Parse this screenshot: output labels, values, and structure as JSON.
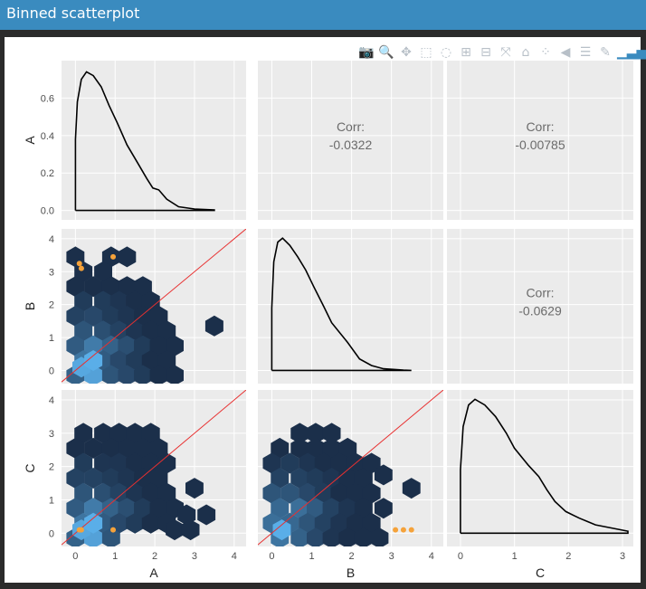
{
  "window": {
    "title": "Binned scatterplot"
  },
  "toolbar": [
    {
      "name": "camera-icon",
      "glyph": "📷"
    },
    {
      "name": "zoom-icon",
      "glyph": "🔍"
    },
    {
      "name": "pan-icon",
      "glyph": "✥"
    },
    {
      "name": "box-select-icon",
      "glyph": "⬚"
    },
    {
      "name": "lasso-icon",
      "glyph": "◌"
    },
    {
      "name": "zoom-in-icon",
      "glyph": "⊞"
    },
    {
      "name": "zoom-out-icon",
      "glyph": "⊟"
    },
    {
      "name": "autoscale-icon",
      "glyph": "⤧"
    },
    {
      "name": "home-icon",
      "glyph": "⌂"
    },
    {
      "name": "spike-lines-icon",
      "glyph": "⁘"
    },
    {
      "name": "hover-closest-icon",
      "glyph": "◀"
    },
    {
      "name": "hover-compare-icon",
      "glyph": "☰"
    },
    {
      "name": "edit-icon",
      "glyph": "✎"
    },
    {
      "name": "plotly-logo-icon",
      "glyph": "▁▃▅"
    }
  ],
  "colors": {
    "hex_dark": "#1b2f4a",
    "hex_light": "#5aaee8",
    "point": "#f5a23a",
    "ref_line": "#e83030",
    "panel_bg": "#ebebeb"
  },
  "chart_data": {
    "type": "scatter-matrix",
    "variables": [
      "A",
      "B",
      "C"
    ],
    "ticks": {
      "A_y": [
        "0.0",
        "0.2",
        "0.4",
        "0.6"
      ],
      "B_y": [
        "0",
        "1",
        "2",
        "3",
        "4"
      ],
      "C_y": [
        "0",
        "1",
        "2",
        "3",
        "4"
      ],
      "A_x": [
        "0",
        "1",
        "2",
        "3",
        "4"
      ],
      "B_x": [
        "0",
        "1",
        "2",
        "3",
        "4"
      ],
      "C_x": [
        "0",
        "1",
        "2",
        "3"
      ]
    },
    "correlations": [
      {
        "pair": "A-B",
        "label": "Corr:",
        "value": "-0.0322"
      },
      {
        "pair": "A-C",
        "label": "Corr:",
        "value": "-0.00785"
      },
      {
        "pair": "B-C",
        "label": "Corr:",
        "value": "-0.0629"
      }
    ],
    "densities": {
      "A": [
        [
          0,
          0
        ],
        [
          0,
          0.38
        ],
        [
          0.05,
          0.58
        ],
        [
          0.15,
          0.7
        ],
        [
          0.28,
          0.74
        ],
        [
          0.45,
          0.72
        ],
        [
          0.65,
          0.66
        ],
        [
          0.85,
          0.56
        ],
        [
          1.05,
          0.47
        ],
        [
          1.3,
          0.35
        ],
        [
          1.55,
          0.26
        ],
        [
          1.8,
          0.17
        ],
        [
          1.95,
          0.12
        ],
        [
          2.1,
          0.11
        ],
        [
          2.3,
          0.06
        ],
        [
          2.6,
          0.02
        ],
        [
          3.0,
          0.008
        ],
        [
          3.5,
          0.003
        ],
        [
          3.5,
          0
        ],
        [
          0,
          0
        ]
      ],
      "B": [
        [
          0,
          0
        ],
        [
          0,
          1.9
        ],
        [
          0.05,
          3.3
        ],
        [
          0.15,
          3.9
        ],
        [
          0.27,
          4.02
        ],
        [
          0.45,
          3.8
        ],
        [
          0.65,
          3.45
        ],
        [
          0.85,
          3.05
        ],
        [
          1.05,
          2.55
        ],
        [
          1.3,
          1.95
        ],
        [
          1.5,
          1.45
        ],
        [
          1.7,
          1.15
        ],
        [
          1.9,
          0.85
        ],
        [
          2.2,
          0.35
        ],
        [
          2.5,
          0.15
        ],
        [
          2.8,
          0.05
        ],
        [
          3.3,
          0.01
        ],
        [
          3.5,
          0
        ],
        [
          0,
          0
        ]
      ],
      "C": [
        [
          0,
          0
        ],
        [
          0,
          1.9
        ],
        [
          0.05,
          3.2
        ],
        [
          0.15,
          3.85
        ],
        [
          0.27,
          4.02
        ],
        [
          0.45,
          3.85
        ],
        [
          0.65,
          3.5
        ],
        [
          0.85,
          3.0
        ],
        [
          1.0,
          2.55
        ],
        [
          1.25,
          2.05
        ],
        [
          1.45,
          1.7
        ],
        [
          1.6,
          1.3
        ],
        [
          1.75,
          0.95
        ],
        [
          1.95,
          0.65
        ],
        [
          2.2,
          0.45
        ],
        [
          2.35,
          0.35
        ],
        [
          2.5,
          0.25
        ],
        [
          3.1,
          0.06
        ],
        [
          3.1,
          0
        ],
        [
          0,
          0
        ]
      ]
    },
    "hex_bins": {
      "B_vs_A": [
        {
          "x": 0,
          "y": 3.45,
          "c": 0
        },
        {
          "x": 0.9,
          "y": 3.45,
          "c": 0
        },
        {
          "x": 1.3,
          "y": 3.45,
          "c": 0
        },
        {
          "x": 0.2,
          "y": 3.0,
          "c": 0
        },
        {
          "x": 0.7,
          "y": 3.0,
          "c": 0
        },
        {
          "x": 0,
          "y": 2.55,
          "c": 0
        },
        {
          "x": 0.45,
          "y": 2.55,
          "c": 0
        },
        {
          "x": 0.9,
          "y": 2.55,
          "c": 0
        },
        {
          "x": 1.3,
          "y": 2.55,
          "c": 0
        },
        {
          "x": 1.7,
          "y": 2.55,
          "c": 0
        },
        {
          "x": 0.2,
          "y": 2.1,
          "c": 0.1
        },
        {
          "x": 0.7,
          "y": 2.1,
          "c": 0.1
        },
        {
          "x": 1.1,
          "y": 2.1,
          "c": 0.05
        },
        {
          "x": 1.5,
          "y": 2.1,
          "c": 0
        },
        {
          "x": 1.9,
          "y": 2.1,
          "c": 0
        },
        {
          "x": 0,
          "y": 1.65,
          "c": 0.15
        },
        {
          "x": 0.45,
          "y": 1.65,
          "c": 0.2
        },
        {
          "x": 0.9,
          "y": 1.65,
          "c": 0.1
        },
        {
          "x": 1.3,
          "y": 1.65,
          "c": 0.05
        },
        {
          "x": 1.7,
          "y": 1.65,
          "c": 0
        },
        {
          "x": 2.1,
          "y": 1.65,
          "c": 0
        },
        {
          "x": 0.2,
          "y": 1.2,
          "c": 0.3
        },
        {
          "x": 0.7,
          "y": 1.2,
          "c": 0.25
        },
        {
          "x": 1.1,
          "y": 1.2,
          "c": 0.15
        },
        {
          "x": 1.5,
          "y": 1.2,
          "c": 0.05
        },
        {
          "x": 1.9,
          "y": 1.2,
          "c": 0
        },
        {
          "x": 2.3,
          "y": 1.2,
          "c": 0
        },
        {
          "x": 3.5,
          "y": 1.35,
          "c": 0
        },
        {
          "x": 0,
          "y": 0.75,
          "c": 0.35
        },
        {
          "x": 0.45,
          "y": 0.75,
          "c": 0.6
        },
        {
          "x": 0.9,
          "y": 0.75,
          "c": 0.4
        },
        {
          "x": 1.3,
          "y": 0.75,
          "c": 0.25
        },
        {
          "x": 1.7,
          "y": 0.75,
          "c": 0.1
        },
        {
          "x": 2.1,
          "y": 0.75,
          "c": 0
        },
        {
          "x": 2.5,
          "y": 0.75,
          "c": 0
        },
        {
          "x": 0.2,
          "y": 0.3,
          "c": 0.55
        },
        {
          "x": 0.7,
          "y": 0.3,
          "c": 0.35
        },
        {
          "x": 1.1,
          "y": 0.3,
          "c": 0.2
        },
        {
          "x": 1.5,
          "y": 0.3,
          "c": 0.1
        },
        {
          "x": 1.9,
          "y": 0.3,
          "c": 0
        },
        {
          "x": 2.3,
          "y": 0.3,
          "c": 0
        },
        {
          "x": 0,
          "y": -0.15,
          "c": 0.4
        },
        {
          "x": 0.45,
          "y": -0.15,
          "c": 0.9
        },
        {
          "x": 0.9,
          "y": -0.15,
          "c": 0.3
        },
        {
          "x": 1.3,
          "y": -0.15,
          "c": 0.2
        },
        {
          "x": 1.7,
          "y": -0.15,
          "c": 0.1
        },
        {
          "x": 2.1,
          "y": -0.15,
          "c": 0
        },
        {
          "x": 2.5,
          "y": -0.15,
          "c": 0
        },
        {
          "x": 0.15,
          "y": 0.1,
          "c": 0.95
        },
        {
          "x": 0.45,
          "y": 0.3,
          "c": 1
        }
      ],
      "C_vs_A": [
        {
          "x": 0.2,
          "y": 3.0,
          "c": 0
        },
        {
          "x": 0.7,
          "y": 3.0,
          "c": 0
        },
        {
          "x": 1.1,
          "y": 3.0,
          "c": 0
        },
        {
          "x": 1.5,
          "y": 3.0,
          "c": 0
        },
        {
          "x": 1.9,
          "y": 3.0,
          "c": 0
        },
        {
          "x": 0,
          "y": 2.55,
          "c": 0
        },
        {
          "x": 0.45,
          "y": 2.55,
          "c": 0
        },
        {
          "x": 0.9,
          "y": 2.55,
          "c": 0
        },
        {
          "x": 1.3,
          "y": 2.55,
          "c": 0
        },
        {
          "x": 1.7,
          "y": 2.55,
          "c": 0
        },
        {
          "x": 2.1,
          "y": 2.55,
          "c": 0
        },
        {
          "x": 0.2,
          "y": 2.1,
          "c": 0.1
        },
        {
          "x": 0.7,
          "y": 2.1,
          "c": 0.05
        },
        {
          "x": 1.1,
          "y": 2.1,
          "c": 0.05
        },
        {
          "x": 1.5,
          "y": 2.1,
          "c": 0
        },
        {
          "x": 1.9,
          "y": 2.1,
          "c": 0
        },
        {
          "x": 2.3,
          "y": 2.1,
          "c": 0
        },
        {
          "x": 0,
          "y": 1.65,
          "c": 0.15
        },
        {
          "x": 0.45,
          "y": 1.65,
          "c": 0.15
        },
        {
          "x": 0.9,
          "y": 1.65,
          "c": 0.1
        },
        {
          "x": 1.3,
          "y": 1.65,
          "c": 0.05
        },
        {
          "x": 1.7,
          "y": 1.65,
          "c": 0
        },
        {
          "x": 2.1,
          "y": 1.65,
          "c": 0
        },
        {
          "x": 0.2,
          "y": 1.2,
          "c": 0.3
        },
        {
          "x": 0.7,
          "y": 1.2,
          "c": 0.25
        },
        {
          "x": 1.1,
          "y": 1.2,
          "c": 0.15
        },
        {
          "x": 1.5,
          "y": 1.2,
          "c": 0.05
        },
        {
          "x": 1.9,
          "y": 1.2,
          "c": 0
        },
        {
          "x": 2.3,
          "y": 1.2,
          "c": 0
        },
        {
          "x": 3.0,
          "y": 1.35,
          "c": 0
        },
        {
          "x": 0,
          "y": 0.75,
          "c": 0.35
        },
        {
          "x": 0.45,
          "y": 0.75,
          "c": 0.6
        },
        {
          "x": 0.9,
          "y": 0.75,
          "c": 0.4
        },
        {
          "x": 1.3,
          "y": 0.75,
          "c": 0.25
        },
        {
          "x": 1.7,
          "y": 0.75,
          "c": 0.1
        },
        {
          "x": 2.1,
          "y": 0.75,
          "c": 0
        },
        {
          "x": 2.5,
          "y": 0.75,
          "c": 0
        },
        {
          "x": 0.2,
          "y": 0.3,
          "c": 0.55
        },
        {
          "x": 0.7,
          "y": 0.3,
          "c": 0.35
        },
        {
          "x": 1.1,
          "y": 0.3,
          "c": 0.2
        },
        {
          "x": 1.5,
          "y": 0.3,
          "c": 0.1
        },
        {
          "x": 1.9,
          "y": 0.3,
          "c": 0
        },
        {
          "x": 2.3,
          "y": 0.3,
          "c": 0
        },
        {
          "x": 2.8,
          "y": 0.55,
          "c": 0
        },
        {
          "x": 3.3,
          "y": 0.55,
          "c": 0
        },
        {
          "x": 0,
          "y": -0.15,
          "c": 0.4
        },
        {
          "x": 0.45,
          "y": -0.15,
          "c": 0.9
        },
        {
          "x": 0.9,
          "y": -0.15,
          "c": 0.3
        },
        {
          "x": 2.5,
          "y": 0.1,
          "c": 0
        },
        {
          "x": 2.9,
          "y": 0.1,
          "c": 0
        },
        {
          "x": 0.15,
          "y": 0.1,
          "c": 0.95
        },
        {
          "x": 0.45,
          "y": 0.3,
          "c": 1
        }
      ],
      "C_vs_B": [
        {
          "x": 0.7,
          "y": 3.0,
          "c": 0
        },
        {
          "x": 1.1,
          "y": 3.0,
          "c": 0
        },
        {
          "x": 1.5,
          "y": 3.0,
          "c": 0
        },
        {
          "x": 0.2,
          "y": 2.55,
          "c": 0
        },
        {
          "x": 0.7,
          "y": 2.55,
          "c": 0
        },
        {
          "x": 1.1,
          "y": 2.55,
          "c": 0
        },
        {
          "x": 1.5,
          "y": 2.55,
          "c": 0
        },
        {
          "x": 1.9,
          "y": 2.55,
          "c": 0
        },
        {
          "x": 0,
          "y": 2.1,
          "c": 0.05
        },
        {
          "x": 0.45,
          "y": 2.1,
          "c": 0.1
        },
        {
          "x": 0.9,
          "y": 2.1,
          "c": 0.05
        },
        {
          "x": 1.3,
          "y": 2.1,
          "c": 0
        },
        {
          "x": 1.7,
          "y": 2.1,
          "c": 0
        },
        {
          "x": 2.1,
          "y": 2.1,
          "c": 0
        },
        {
          "x": 2.5,
          "y": 2.1,
          "c": 0
        },
        {
          "x": 0.2,
          "y": 1.65,
          "c": 0.15
        },
        {
          "x": 0.7,
          "y": 1.65,
          "c": 0.15
        },
        {
          "x": 1.1,
          "y": 1.65,
          "c": 0.1
        },
        {
          "x": 1.5,
          "y": 1.65,
          "c": 0.05
        },
        {
          "x": 1.9,
          "y": 1.65,
          "c": 0
        },
        {
          "x": 2.3,
          "y": 1.65,
          "c": 0
        },
        {
          "x": 2.8,
          "y": 1.75,
          "c": 0
        },
        {
          "x": 0,
          "y": 1.2,
          "c": 0.3
        },
        {
          "x": 0.45,
          "y": 1.2,
          "c": 0.3
        },
        {
          "x": 0.9,
          "y": 1.2,
          "c": 0.2
        },
        {
          "x": 1.3,
          "y": 1.2,
          "c": 0.1
        },
        {
          "x": 1.7,
          "y": 1.2,
          "c": 0
        },
        {
          "x": 2.1,
          "y": 1.2,
          "c": 0
        },
        {
          "x": 2.5,
          "y": 1.2,
          "c": 0
        },
        {
          "x": 3.5,
          "y": 1.35,
          "c": 0
        },
        {
          "x": 0.2,
          "y": 0.75,
          "c": 0.45
        },
        {
          "x": 0.7,
          "y": 0.75,
          "c": 0.5
        },
        {
          "x": 1.1,
          "y": 0.75,
          "c": 0.35
        },
        {
          "x": 1.5,
          "y": 0.75,
          "c": 0.15
        },
        {
          "x": 1.9,
          "y": 0.75,
          "c": 0.05
        },
        {
          "x": 2.3,
          "y": 0.75,
          "c": 0
        },
        {
          "x": 2.8,
          "y": 0.75,
          "c": 0
        },
        {
          "x": 0,
          "y": 0.3,
          "c": 0.5
        },
        {
          "x": 0.45,
          "y": 0.3,
          "c": 0.45
        },
        {
          "x": 0.9,
          "y": 0.3,
          "c": 0.3
        },
        {
          "x": 1.3,
          "y": 0.3,
          "c": 0.15
        },
        {
          "x": 1.7,
          "y": 0.3,
          "c": 0.05
        },
        {
          "x": 2.1,
          "y": 0.3,
          "c": 0
        },
        {
          "x": 2.5,
          "y": 0.3,
          "c": 0
        },
        {
          "x": 0.2,
          "y": -0.15,
          "c": 0.55
        },
        {
          "x": 0.7,
          "y": -0.15,
          "c": 0.4
        },
        {
          "x": 1.1,
          "y": -0.15,
          "c": 0.2
        },
        {
          "x": 1.5,
          "y": -0.15,
          "c": 0.05
        },
        {
          "x": 1.9,
          "y": -0.15,
          "c": 0
        },
        {
          "x": 2.3,
          "y": -0.15,
          "c": 0
        },
        {
          "x": 2.7,
          "y": -0.15,
          "c": 0
        },
        {
          "x": 0.25,
          "y": 0.1,
          "c": 1
        }
      ]
    },
    "outlier_points": {
      "B_vs_A": [
        [
          0.1,
          3.25
        ],
        [
          0.15,
          3.1
        ],
        [
          0.95,
          3.45
        ]
      ],
      "C_vs_A": [
        [
          0.1,
          0.1
        ],
        [
          0.15,
          0.1
        ],
        [
          0.95,
          0.1
        ]
      ],
      "C_vs_B": [
        [
          3.1,
          0.1
        ],
        [
          3.3,
          0.1
        ],
        [
          3.5,
          0.1
        ]
      ]
    },
    "ref_line": "y = x"
  }
}
